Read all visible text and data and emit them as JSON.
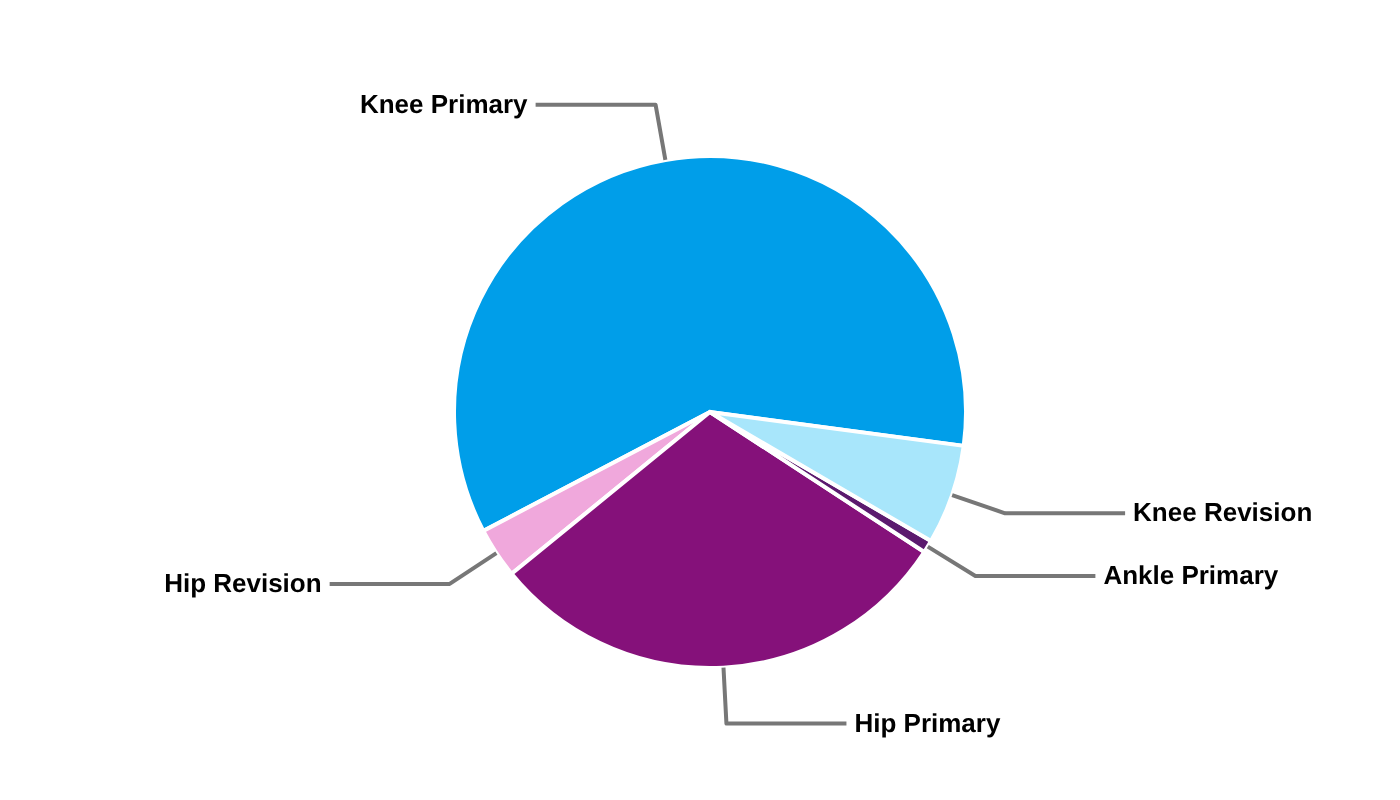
{
  "chart_data": {
    "type": "pie",
    "categories": [
      "Knee Primary",
      "Hip Revision",
      "Hip Primary",
      "Ankle Primary",
      "Knee Revision"
    ],
    "values": [
      59.8,
      3.2,
      29.9,
      0.8,
      6.3
    ],
    "colors": [
      "#009ee9",
      "#f0a8dc",
      "#85117a",
      "#5b1a6e",
      "#a8e6fb"
    ],
    "legend": false
  }
}
